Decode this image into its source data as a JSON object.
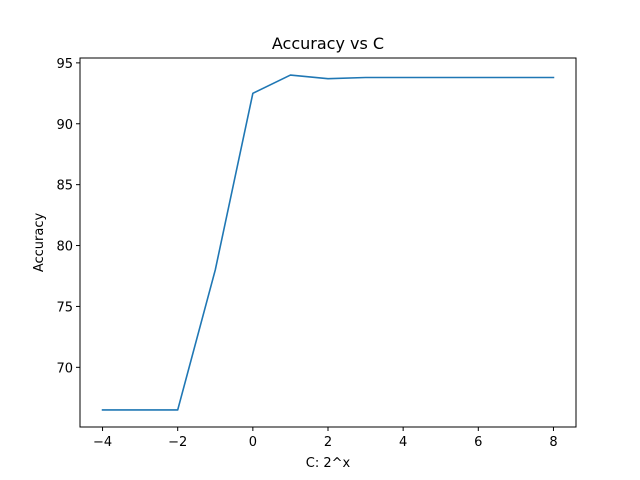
{
  "chart_data": {
    "type": "line",
    "title": "Accuracy vs C",
    "xlabel": "C: 2^x",
    "ylabel": "Accuracy",
    "xlim": [
      -4.6,
      8.6
    ],
    "ylim": [
      65.1,
      95.4
    ],
    "grid": false,
    "x_ticks": [
      -4,
      -2,
      0,
      2,
      4,
      6,
      8
    ],
    "x_tick_labels": [
      "−4",
      "−2",
      "0",
      "2",
      "4",
      "6",
      "8"
    ],
    "y_ticks": [
      70,
      75,
      80,
      85,
      90,
      95
    ],
    "y_tick_labels": [
      "70",
      "75",
      "80",
      "85",
      "90",
      "95"
    ],
    "series": [
      {
        "color": "#1f77b4",
        "x": [
          -4,
          -3,
          -2,
          -1,
          0,
          1,
          2,
          3,
          4,
          5,
          6,
          7,
          8
        ],
        "y": [
          66.5,
          66.5,
          66.5,
          78.0,
          92.5,
          94.0,
          93.7,
          93.8,
          93.8,
          93.8,
          93.8,
          93.8,
          93.8
        ]
      }
    ]
  }
}
